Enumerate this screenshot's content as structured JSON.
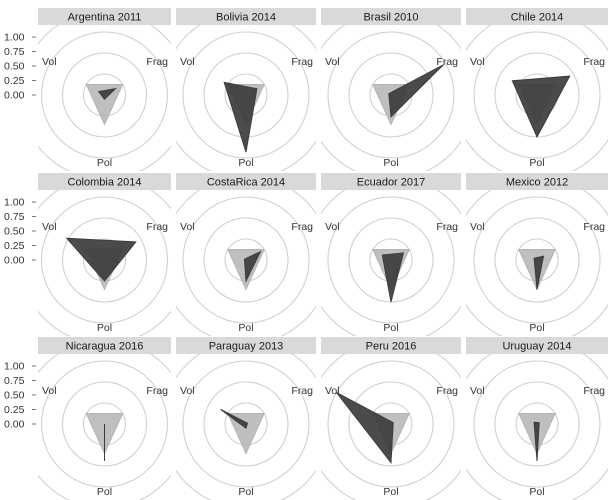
{
  "chart_data": {
    "type": "radar",
    "layout": {
      "rows": 3,
      "cols": 4
    },
    "axes": [
      "Vol",
      "Frag",
      "Pol"
    ],
    "radial_ticks": [
      "1.00",
      "0.75",
      "0.50",
      "0.25",
      "0.00"
    ],
    "rlim": [
      0,
      1
    ],
    "colors": {
      "reference": "#b4b4b4",
      "country": "#3c3c3c",
      "rings": "#d0d0d0",
      "strip": "#d9d9d9"
    },
    "reference_values": {
      "Vol": 0.25,
      "Frag": 0.25,
      "Pol": 0.35
    },
    "panels": [
      {
        "title": "Argentina 2011",
        "values": {
          "Vol": 0.08,
          "Frag": 0.15,
          "Pol": 0.05
        }
      },
      {
        "title": "Bolivia 2014",
        "values": {
          "Vol": 0.3,
          "Frag": 0.15,
          "Pol": 0.68
        }
      },
      {
        "title": "Brasil 2010",
        "values": {
          "Vol": 0.03,
          "Frag": 0.72,
          "Pol": 0.26
        }
      },
      {
        "title": "Chile 2014",
        "values": {
          "Vol": 0.34,
          "Frag": 0.45,
          "Pol": 0.5
        }
      },
      {
        "title": "Colombia 2014",
        "values": {
          "Vol": 0.52,
          "Frag": 0.43,
          "Pol": 0.25
        }
      },
      {
        "title": "CostaRica 2014",
        "values": {
          "Vol": 0.02,
          "Frag": 0.2,
          "Pol": 0.25
        }
      },
      {
        "title": "Ecuador 2017",
        "values": {
          "Vol": 0.12,
          "Frag": 0.17,
          "Pol": 0.5
        }
      },
      {
        "title": "Mexico 2012",
        "values": {
          "Vol": 0.04,
          "Frag": 0.09,
          "Pol": 0.35
        }
      },
      {
        "title": "Nicaragua 2016",
        "values": {
          "Vol": 0.0,
          "Frag": 0.0,
          "Pol": 0.44
        }
      },
      {
        "title": "Paraguay 2013",
        "values": {
          "Vol": 0.35,
          "Frag": 0.02,
          "Pol": 0.05
        }
      },
      {
        "title": "Peru 2016",
        "values": {
          "Vol": 0.75,
          "Frag": 0.03,
          "Pol": 0.46
        }
      },
      {
        "title": "Uruguay 2014",
        "values": {
          "Vol": 0.04,
          "Frag": 0.03,
          "Pol": 0.44
        }
      }
    ]
  }
}
